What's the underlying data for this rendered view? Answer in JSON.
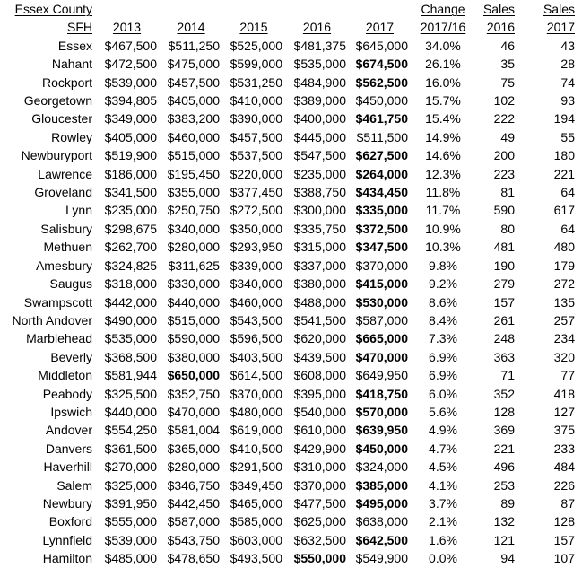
{
  "table": {
    "title": "Essex County",
    "header": {
      "sfh": "SFH",
      "years": [
        "2013",
        "2014",
        "2015",
        "2016",
        "2017"
      ],
      "change_line1": "Change",
      "change_line2": "2017/16",
      "sales_2016_line1": "Sales",
      "sales_2016_line2": "2016",
      "sales_2017_line1": "Sales",
      "sales_2017_line2": "2017"
    },
    "rows": [
      {
        "town": "Essex",
        "y2013": "$467,500",
        "y2014": "$511,250",
        "y2015": "$525,000",
        "y2016": "$481,375",
        "y2017": "$645,000",
        "change": "34.0%",
        "sales_2016": "46",
        "sales_2017": "43",
        "bold": ""
      },
      {
        "town": "Nahant",
        "y2013": "$472,500",
        "y2014": "$475,000",
        "y2015": "$599,000",
        "y2016": "$535,000",
        "y2017": "$674,500",
        "change": "26.1%",
        "sales_2016": "35",
        "sales_2017": "28",
        "bold": "2017"
      },
      {
        "town": "Rockport",
        "y2013": "$539,000",
        "y2014": "$457,500",
        "y2015": "$531,250",
        "y2016": "$484,900",
        "y2017": "$562,500",
        "change": "16.0%",
        "sales_2016": "75",
        "sales_2017": "74",
        "bold": "2017"
      },
      {
        "town": "Georgetown",
        "y2013": "$394,805",
        "y2014": "$405,000",
        "y2015": "$410,000",
        "y2016": "$389,000",
        "y2017": "$450,000",
        "change": "15.7%",
        "sales_2016": "102",
        "sales_2017": "93",
        "bold": ""
      },
      {
        "town": "Gloucester",
        "y2013": "$349,000",
        "y2014": "$383,200",
        "y2015": "$390,000",
        "y2016": "$400,000",
        "y2017": "$461,750",
        "change": "15.4%",
        "sales_2016": "222",
        "sales_2017": "194",
        "bold": "2017"
      },
      {
        "town": "Rowley",
        "y2013": "$405,000",
        "y2014": "$460,000",
        "y2015": "$457,500",
        "y2016": "$445,000",
        "y2017": "$511,500",
        "change": "14.9%",
        "sales_2016": "49",
        "sales_2017": "55",
        "bold": ""
      },
      {
        "town": "Newburyport",
        "y2013": "$519,900",
        "y2014": "$515,000",
        "y2015": "$537,500",
        "y2016": "$547,500",
        "y2017": "$627,500",
        "change": "14.6%",
        "sales_2016": "200",
        "sales_2017": "180",
        "bold": "2017"
      },
      {
        "town": "Lawrence",
        "y2013": "$186,000",
        "y2014": "$195,450",
        "y2015": "$220,000",
        "y2016": "$235,000",
        "y2017": "$264,000",
        "change": "12.3%",
        "sales_2016": "223",
        "sales_2017": "221",
        "bold": "2017"
      },
      {
        "town": "Groveland",
        "y2013": "$341,500",
        "y2014": "$355,000",
        "y2015": "$377,450",
        "y2016": "$388,750",
        "y2017": "$434,450",
        "change": "11.8%",
        "sales_2016": "81",
        "sales_2017": "64",
        "bold": "2017"
      },
      {
        "town": "Lynn",
        "y2013": "$235,000",
        "y2014": "$250,750",
        "y2015": "$272,500",
        "y2016": "$300,000",
        "y2017": "$335,000",
        "change": "11.7%",
        "sales_2016": "590",
        "sales_2017": "617",
        "bold": "2017"
      },
      {
        "town": "Salisbury",
        "y2013": "$298,675",
        "y2014": "$340,000",
        "y2015": "$350,000",
        "y2016": "$335,750",
        "y2017": "$372,500",
        "change": "10.9%",
        "sales_2016": "80",
        "sales_2017": "64",
        "bold": "2017"
      },
      {
        "town": "Methuen",
        "y2013": "$262,700",
        "y2014": "$280,000",
        "y2015": "$293,950",
        "y2016": "$315,000",
        "y2017": "$347,500",
        "change": "10.3%",
        "sales_2016": "481",
        "sales_2017": "480",
        "bold": "2017"
      },
      {
        "town": "Amesbury",
        "y2013": "$324,825",
        "y2014": "$311,625",
        "y2015": "$339,000",
        "y2016": "$337,000",
        "y2017": "$370,000",
        "change": "9.8%",
        "sales_2016": "190",
        "sales_2017": "179",
        "bold": ""
      },
      {
        "town": "Saugus",
        "y2013": "$318,000",
        "y2014": "$330,000",
        "y2015": "$340,000",
        "y2016": "$380,000",
        "y2017": "$415,000",
        "change": "9.2%",
        "sales_2016": "279",
        "sales_2017": "272",
        "bold": "2017"
      },
      {
        "town": "Swampscott",
        "y2013": "$442,000",
        "y2014": "$440,000",
        "y2015": "$460,000",
        "y2016": "$488,000",
        "y2017": "$530,000",
        "change": "8.6%",
        "sales_2016": "157",
        "sales_2017": "135",
        "bold": "2017"
      },
      {
        "town": "North Andover",
        "y2013": "$490,000",
        "y2014": "$515,000",
        "y2015": "$543,500",
        "y2016": "$541,500",
        "y2017": "$587,000",
        "change": "8.4%",
        "sales_2016": "261",
        "sales_2017": "257",
        "bold": ""
      },
      {
        "town": "Marblehead",
        "y2013": "$535,000",
        "y2014": "$590,000",
        "y2015": "$596,500",
        "y2016": "$620,000",
        "y2017": "$665,000",
        "change": "7.3%",
        "sales_2016": "248",
        "sales_2017": "234",
        "bold": "2017"
      },
      {
        "town": "Beverly",
        "y2013": "$368,500",
        "y2014": "$380,000",
        "y2015": "$403,500",
        "y2016": "$439,500",
        "y2017": "$470,000",
        "change": "6.9%",
        "sales_2016": "363",
        "sales_2017": "320",
        "bold": "2017"
      },
      {
        "town": "Middleton",
        "y2013": "$581,944",
        "y2014": "$650,000",
        "y2015": "$614,500",
        "y2016": "$608,000",
        "y2017": "$649,950",
        "change": "6.9%",
        "sales_2016": "71",
        "sales_2017": "77",
        "bold": "2014"
      },
      {
        "town": "Peabody",
        "y2013": "$325,500",
        "y2014": "$352,750",
        "y2015": "$370,000",
        "y2016": "$395,000",
        "y2017": "$418,750",
        "change": "6.0%",
        "sales_2016": "352",
        "sales_2017": "418",
        "bold": "2017"
      },
      {
        "town": "Ipswich",
        "y2013": "$440,000",
        "y2014": "$470,000",
        "y2015": "$480,000",
        "y2016": "$540,000",
        "y2017": "$570,000",
        "change": "5.6%",
        "sales_2016": "128",
        "sales_2017": "127",
        "bold": "2017"
      },
      {
        "town": "Andover",
        "y2013": "$554,250",
        "y2014": "$581,004",
        "y2015": "$619,000",
        "y2016": "$610,000",
        "y2017": "$639,950",
        "change": "4.9%",
        "sales_2016": "369",
        "sales_2017": "375",
        "bold": "2017"
      },
      {
        "town": "Danvers",
        "y2013": "$361,500",
        "y2014": "$365,000",
        "y2015": "$410,500",
        "y2016": "$429,900",
        "y2017": "$450,000",
        "change": "4.7%",
        "sales_2016": "221",
        "sales_2017": "233",
        "bold": "2017"
      },
      {
        "town": "Haverhill",
        "y2013": "$270,000",
        "y2014": "$280,000",
        "y2015": "$291,500",
        "y2016": "$310,000",
        "y2017": "$324,000",
        "change": "4.5%",
        "sales_2016": "496",
        "sales_2017": "484",
        "bold": ""
      },
      {
        "town": "Salem",
        "y2013": "$325,000",
        "y2014": "$346,750",
        "y2015": "$349,450",
        "y2016": "$370,000",
        "y2017": "$385,000",
        "change": "4.1%",
        "sales_2016": "253",
        "sales_2017": "226",
        "bold": "2017"
      },
      {
        "town": "Newbury",
        "y2013": "$391,950",
        "y2014": "$442,450",
        "y2015": "$465,000",
        "y2016": "$477,500",
        "y2017": "$495,000",
        "change": "3.7%",
        "sales_2016": "89",
        "sales_2017": "87",
        "bold": "2017"
      },
      {
        "town": "Boxford",
        "y2013": "$555,000",
        "y2014": "$587,000",
        "y2015": "$585,000",
        "y2016": "$625,000",
        "y2017": "$638,000",
        "change": "2.1%",
        "sales_2016": "132",
        "sales_2017": "128",
        "bold": ""
      },
      {
        "town": "Lynnfield",
        "y2013": "$539,000",
        "y2014": "$543,750",
        "y2015": "$603,000",
        "y2016": "$632,500",
        "y2017": "$642,500",
        "change": "1.6%",
        "sales_2016": "121",
        "sales_2017": "157",
        "bold": "2017"
      },
      {
        "town": "Hamilton",
        "y2013": "$485,000",
        "y2014": "$478,650",
        "y2015": "$493,500",
        "y2016": "$550,000",
        "y2017": "$549,900",
        "change": "0.0%",
        "sales_2016": "94",
        "sales_2017": "107",
        "bold": "2016"
      }
    ]
  }
}
